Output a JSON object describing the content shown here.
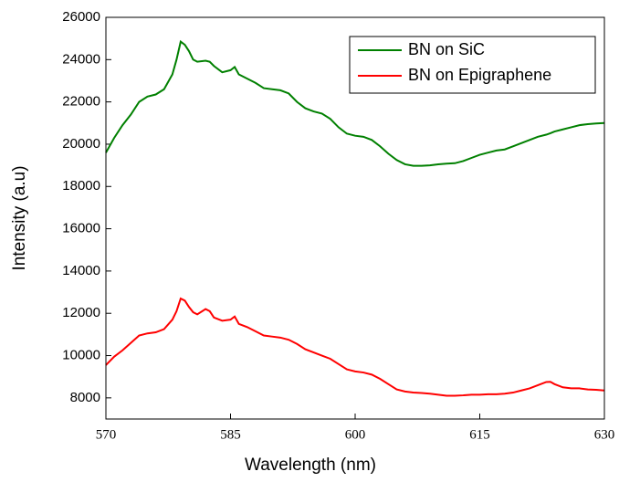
{
  "chart_data": {
    "type": "line",
    "x_label": "Wavelength (nm)",
    "y_label": "Intensity (a.u)",
    "x": [
      570,
      571,
      572,
      573,
      574,
      575,
      576,
      577,
      578,
      578.5,
      579,
      579.5,
      580,
      580.5,
      581,
      582,
      582.5,
      583,
      584,
      585,
      585.5,
      586,
      587,
      588,
      589,
      590,
      591,
      592,
      593,
      594,
      595,
      596,
      597,
      598,
      599,
      600,
      601,
      602,
      603,
      604,
      605,
      606,
      607,
      608,
      609,
      610,
      611,
      612,
      613,
      614,
      615,
      616,
      617,
      618,
      619,
      620,
      621,
      622,
      623,
      623.5,
      624,
      625,
      626,
      627,
      628,
      629,
      630
    ],
    "series": [
      {
        "name": "BN on SiC",
        "color": "#008000",
        "values": [
          19600,
          20300,
          20900,
          21400,
          22000,
          22250,
          22350,
          22600,
          23300,
          24000,
          24850,
          24700,
          24400,
          24000,
          23900,
          23950,
          23900,
          23700,
          23400,
          23500,
          23650,
          23300,
          23100,
          22900,
          22650,
          22600,
          22550,
          22400,
          22000,
          21700,
          21550,
          21450,
          21200,
          20800,
          20500,
          20400,
          20350,
          20200,
          19900,
          19550,
          19250,
          19050,
          18980,
          18980,
          19000,
          19050,
          19080,
          19100,
          19200,
          19350,
          19500,
          19600,
          19700,
          19750,
          19900,
          20050,
          20200,
          20350,
          20450,
          20520,
          20600,
          20700,
          20800,
          20900,
          20950,
          20980,
          21000
        ]
      },
      {
        "name": "BN on Epigraphene",
        "color": "#ff0000",
        "values": [
          9550,
          9950,
          10250,
          10600,
          10950,
          11050,
          11100,
          11250,
          11700,
          12100,
          12700,
          12600,
          12300,
          12050,
          11950,
          12200,
          12100,
          11800,
          11650,
          11700,
          11850,
          11500,
          11350,
          11150,
          10950,
          10900,
          10850,
          10750,
          10550,
          10300,
          10150,
          10000,
          9850,
          9600,
          9350,
          9250,
          9200,
          9100,
          8900,
          8650,
          8400,
          8300,
          8250,
          8230,
          8200,
          8150,
          8100,
          8100,
          8120,
          8150,
          8150,
          8170,
          8170,
          8200,
          8250,
          8350,
          8450,
          8600,
          8750,
          8760,
          8650,
          8500,
          8450,
          8450,
          8400,
          8380,
          8350
        ]
      }
    ],
    "xlim": [
      570,
      630
    ],
    "xticks": [
      570,
      585,
      600,
      615,
      630
    ],
    "ylim": [
      7000,
      26000
    ],
    "yticks": [
      8000,
      10000,
      12000,
      14000,
      16000,
      18000,
      20000,
      22000,
      24000,
      26000
    ],
    "legend": "upper right",
    "grid": false
  }
}
